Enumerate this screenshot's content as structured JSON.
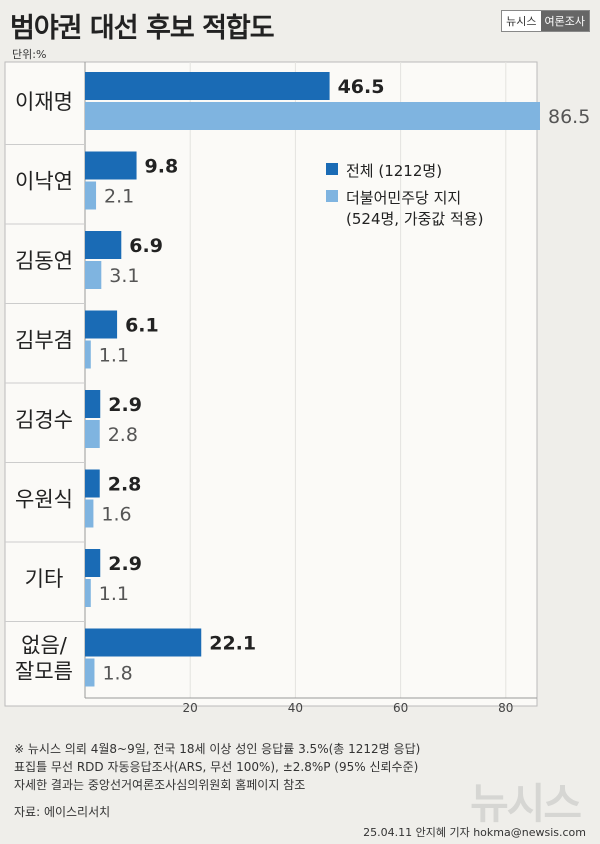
{
  "header": {
    "title": "범야권 대선 후보 적합도",
    "brand_left": "뉴시스",
    "brand_right": "여론조사",
    "unit": "단위:%"
  },
  "legend": [
    {
      "label": "전체 (1212명)",
      "color": "#1a6bb5"
    },
    {
      "label": "더불어민주당 지지",
      "label2": "(524명, 가중값 적용)",
      "color": "#7fb4e0"
    }
  ],
  "chart_data": {
    "type": "bar",
    "orientation": "horizontal",
    "categories": [
      {
        "label": [
          "이재명"
        ]
      },
      {
        "label": [
          "이낙연"
        ]
      },
      {
        "label": [
          "김동연"
        ]
      },
      {
        "label": [
          "김부겸"
        ]
      },
      {
        "label": [
          "김경수"
        ]
      },
      {
        "label": [
          "우원식"
        ]
      },
      {
        "label": [
          "기타"
        ]
      },
      {
        "label": [
          "없음/",
          "잘모름"
        ]
      }
    ],
    "series": [
      {
        "name": "전체 (1212명)",
        "color": "#1a6bb5",
        "values": [
          46.5,
          9.8,
          6.9,
          6.1,
          2.9,
          2.8,
          2.9,
          22.1
        ]
      },
      {
        "name": "더불어민주당 지지 (524명, 가중값 적용)",
        "color": "#7fb4e0",
        "values": [
          86.5,
          2.1,
          3.1,
          1.1,
          2.8,
          1.6,
          1.1,
          1.8
        ]
      }
    ],
    "xticks": [
      20,
      40,
      60,
      80
    ],
    "xlim": [
      0,
      86.5
    ],
    "unit": "%"
  },
  "notes": [
    "※ 뉴시스 의뢰 4월8~9일, 전국 18세 이상 성인 응답률 3.5%(총 1212명 응답)",
    "표집틀 무선 RDD 자동응답조사(ARS, 무선 100%), ±2.8%P (95% 신뢰수준)",
    "자세한 결과는 중앙선거여론조사심의위원회 홈페이지 참조"
  ],
  "source": "자료: 에이스리서치",
  "credit": "25.04.11 안지혜 기자 hokma@newsis.com",
  "watermark": "뉴시스"
}
